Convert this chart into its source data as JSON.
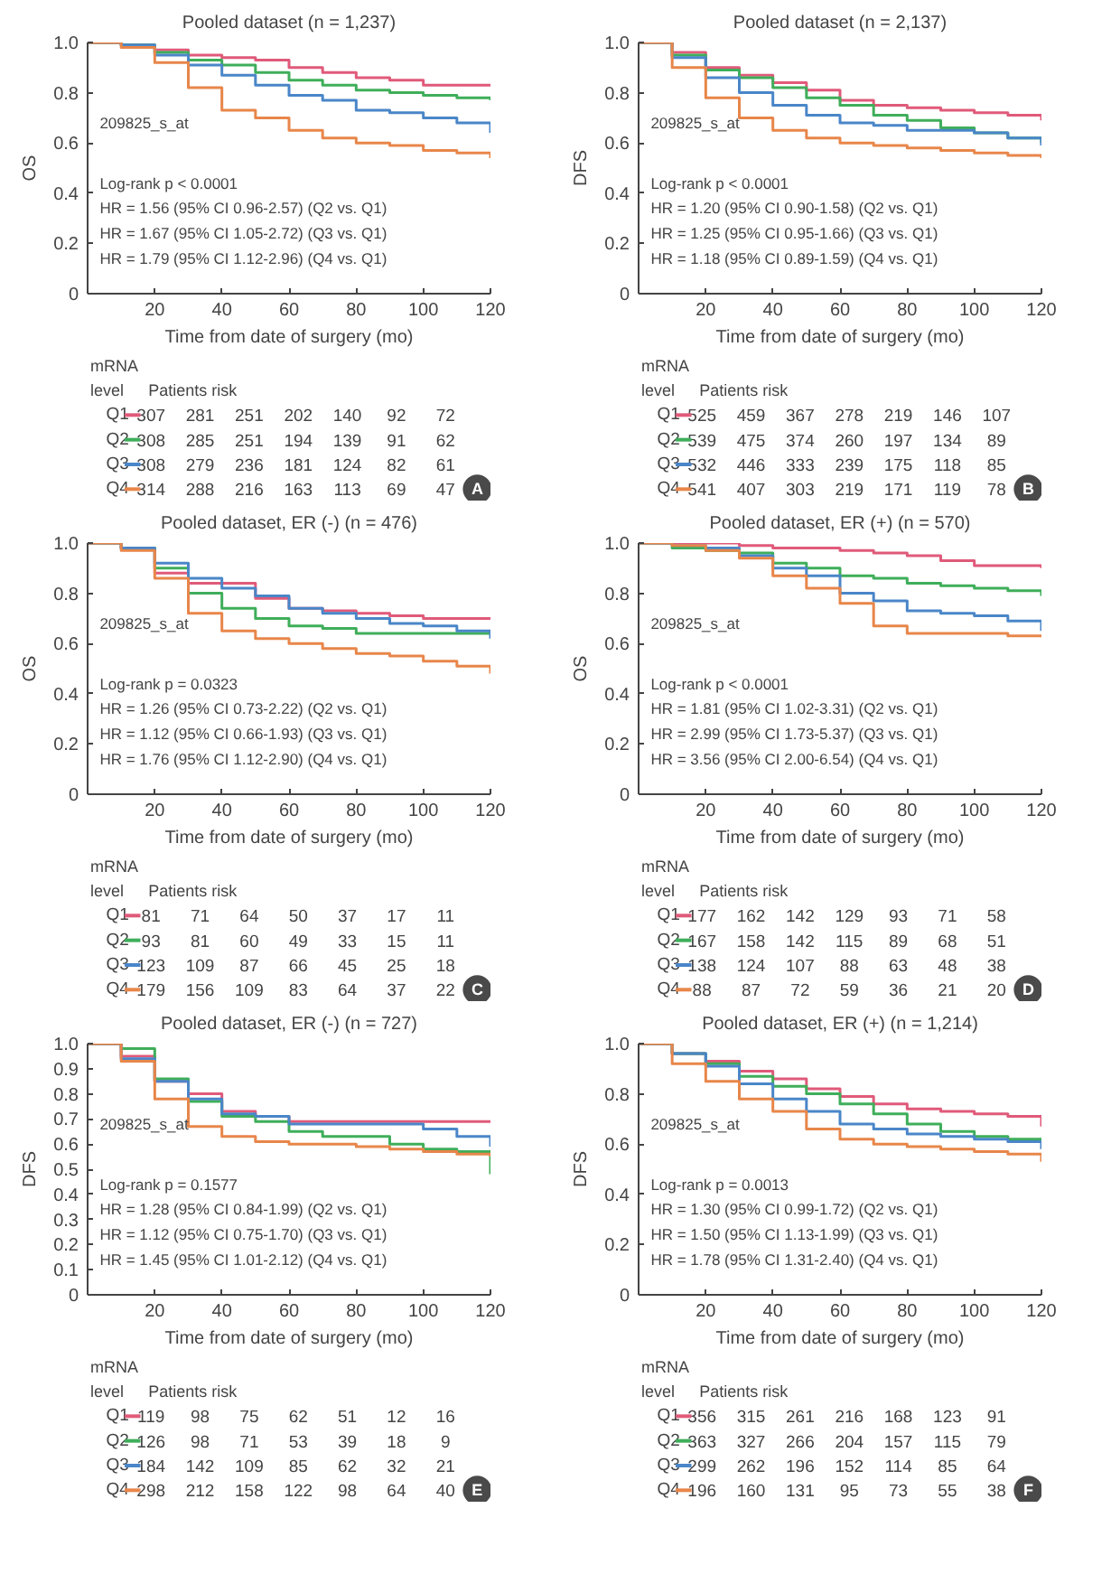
{
  "chart_data": [
    {
      "type": "step",
      "title": "Pooled dataset (n = 1,237)",
      "xlabel": "Time from date of surgery (mo)",
      "ylabel": "OS",
      "x": [
        0,
        10,
        20,
        30,
        40,
        50,
        60,
        70,
        80,
        90,
        100,
        110,
        120
      ],
      "xlim": [
        0,
        120
      ],
      "xticks": [
        20,
        40,
        60,
        80,
        100,
        120
      ],
      "ylim": [
        0,
        1
      ],
      "yticks": [
        0,
        {
          "value": 0.2,
          "label": "0.2"
        },
        {
          "value": 0.4,
          "label": "0.4"
        },
        {
          "value": 0.6,
          "label": "0.6"
        },
        {
          "value": 0.8,
          "label": "0.8"
        },
        {
          "value": 1,
          "label": "1.0"
        }
      ],
      "grid": false,
      "legend": "bottom",
      "marker": "none",
      "line_style": "solid",
      "series": [
        {
          "name": "Q1",
          "color": "#e05a7a",
          "values": [
            1,
            0.99,
            0.97,
            0.95,
            0.94,
            0.93,
            0.9,
            0.88,
            0.86,
            0.85,
            0.83,
            0.83,
            0.83
          ]
        },
        {
          "name": "Q2",
          "color": "#3fae5a",
          "values": [
            1,
            0.99,
            0.96,
            0.93,
            0.91,
            0.88,
            0.85,
            0.83,
            0.81,
            0.8,
            0.79,
            0.78,
            0.77
          ]
        },
        {
          "name": "Q3",
          "color": "#4a86c8",
          "values": [
            1,
            0.99,
            0.95,
            0.91,
            0.87,
            0.83,
            0.79,
            0.77,
            0.73,
            0.72,
            0.7,
            0.68,
            0.64
          ]
        },
        {
          "name": "Q4",
          "color": "#e8864a",
          "values": [
            1,
            0.98,
            0.92,
            0.82,
            0.73,
            0.7,
            0.65,
            0.62,
            0.6,
            0.59,
            0.57,
            0.56,
            0.54
          ]
        }
      ],
      "annotations": [
        "209825_s_at",
        "Log-rank p < 0.0001",
        "HR = 1.56 (95% CI 0.96-2.57) (Q2 vs. Q1)",
        "HR = 1.67 (95% CI 1.05-2.72) (Q3 vs. Q1)",
        "HR = 1.79 (95% CI 1.12-2.96) (Q4 vs. Q1)",
        "mRNA",
        "level",
        "Patients risk",
        "307 281 251 202 140 92 72",
        "308 285 251 194 139 91 62",
        "308 279 236 181 124 82 61",
        "314 288 216 163 113 69 47",
        "A"
      ]
    },
    {
      "type": "step",
      "title": "Pooled dataset (n = 2,137)",
      "xlabel": "Time from date of surgery (mo)",
      "ylabel": "DFS",
      "x": [
        0,
        10,
        20,
        30,
        40,
        50,
        60,
        70,
        80,
        90,
        100,
        110,
        120
      ],
      "xlim": [
        0,
        120
      ],
      "xticks": [
        20,
        40,
        60,
        80,
        100,
        120
      ],
      "ylim": [
        0,
        1
      ],
      "yticks": [
        0,
        {
          "value": 0.2,
          "label": "0.2"
        },
        {
          "value": 0.4,
          "label": "0.4"
        },
        {
          "value": 0.6,
          "label": "0.6"
        },
        {
          "value": 0.8,
          "label": "0.8"
        },
        {
          "value": 1,
          "label": "1.0"
        }
      ],
      "grid": false,
      "legend": "bottom",
      "marker": "none",
      "line_style": "solid",
      "series": [
        {
          "name": "Q1",
          "color": "#e05a7a",
          "values": [
            1,
            0.96,
            0.9,
            0.87,
            0.84,
            0.81,
            0.77,
            0.75,
            0.74,
            0.73,
            0.72,
            0.71,
            0.69
          ]
        },
        {
          "name": "Q2",
          "color": "#3fae5a",
          "values": [
            1,
            0.95,
            0.89,
            0.86,
            0.82,
            0.78,
            0.75,
            0.71,
            0.69,
            0.66,
            0.64,
            0.62,
            0.6
          ]
        },
        {
          "name": "Q3",
          "color": "#4a86c8",
          "values": [
            1,
            0.94,
            0.86,
            0.8,
            0.75,
            0.71,
            0.68,
            0.67,
            0.65,
            0.65,
            0.64,
            0.62,
            0.59
          ]
        },
        {
          "name": "Q4",
          "color": "#e8864a",
          "values": [
            1,
            0.9,
            0.78,
            0.7,
            0.65,
            0.62,
            0.6,
            0.59,
            0.58,
            0.57,
            0.56,
            0.55,
            0.54
          ]
        }
      ],
      "annotations": [
        "209825_s_at",
        "Log-rank p < 0.0001",
        "HR = 1.20 (95% CI 0.90-1.58) (Q2 vs. Q1)",
        "HR = 1.25 (95% CI 0.95-1.66) (Q3 vs. Q1)",
        "HR = 1.18 (95% CI 0.89-1.59) (Q4 vs. Q1)",
        "mRNA",
        "level",
        "Patients risk",
        "525 459 367 278 219 146 107",
        "539 475 374 260 197 134 89",
        "532 446 333 239 175 118 85",
        "541 407 303 219 171 119 78",
        "B"
      ]
    },
    {
      "type": "step",
      "title": "Pooled dataset, ER (-) (n = 476)",
      "xlabel": "Time from date of surgery (mo)",
      "ylabel": "OS",
      "x": [
        0,
        10,
        20,
        30,
        40,
        50,
        60,
        70,
        80,
        90,
        100,
        110,
        120
      ],
      "xlim": [
        0,
        120
      ],
      "xticks": [
        20,
        40,
        60,
        80,
        100,
        120
      ],
      "ylim": [
        0,
        1
      ],
      "yticks": [
        0,
        {
          "value": 0.2,
          "label": "0.2"
        },
        {
          "value": 0.4,
          "label": "0.4"
        },
        {
          "value": 0.6,
          "label": "0.6"
        },
        {
          "value": 0.8,
          "label": "0.8"
        },
        {
          "value": 1,
          "label": "1.0"
        }
      ],
      "grid": false,
      "legend": "bottom",
      "marker": "none",
      "line_style": "solid",
      "series": [
        {
          "name": "Q1",
          "color": "#e05a7a",
          "values": [
            1,
            0.98,
            0.88,
            0.84,
            0.84,
            0.78,
            0.74,
            0.73,
            0.72,
            0.71,
            0.7,
            0.7,
            0.7
          ]
        },
        {
          "name": "Q2",
          "color": "#3fae5a",
          "values": [
            1,
            0.98,
            0.9,
            0.8,
            0.74,
            0.7,
            0.67,
            0.66,
            0.64,
            0.64,
            0.64,
            0.64,
            0.64
          ]
        },
        {
          "name": "Q3",
          "color": "#4a86c8",
          "values": [
            1,
            0.98,
            0.92,
            0.86,
            0.82,
            0.79,
            0.74,
            0.72,
            0.7,
            0.68,
            0.67,
            0.65,
            0.62
          ]
        },
        {
          "name": "Q4",
          "color": "#e8864a",
          "values": [
            1,
            0.97,
            0.86,
            0.72,
            0.65,
            0.62,
            0.6,
            0.58,
            0.56,
            0.55,
            0.53,
            0.51,
            0.48
          ]
        }
      ],
      "annotations": [
        "209825_s_at",
        "Log-rank p = 0.0323",
        "HR = 1.26 (95% CI 0.73-2.22) (Q2 vs. Q1)",
        "HR = 1.12 (95% CI 0.66-1.93) (Q3 vs. Q1)",
        "HR = 1.76 (95% CI 1.12-2.90) (Q4 vs. Q1)",
        "mRNA",
        "level",
        "Patients risk",
        "81 71 64 50 37 17 11",
        "93 81 60 49 33 15 11",
        "123 109 87 66 45 25 18",
        "179 156 109 83 64 37 22",
        "C"
      ]
    },
    {
      "type": "step",
      "title": "Pooled dataset, ER (+) (n = 570)",
      "xlabel": "Time from date of surgery (mo)",
      "ylabel": "OS",
      "x": [
        0,
        10,
        20,
        30,
        40,
        50,
        60,
        70,
        80,
        90,
        100,
        110,
        120
      ],
      "xlim": [
        0,
        120
      ],
      "xticks": [
        20,
        40,
        60,
        80,
        100,
        120
      ],
      "ylim": [
        0,
        1
      ],
      "yticks": [
        0,
        {
          "value": 0.2,
          "label": "0.2"
        },
        {
          "value": 0.4,
          "label": "0.4"
        },
        {
          "value": 0.6,
          "label": "0.6"
        },
        {
          "value": 0.8,
          "label": "0.8"
        },
        {
          "value": 1,
          "label": "1.0"
        }
      ],
      "grid": false,
      "legend": "bottom",
      "marker": "none",
      "line_style": "solid",
      "series": [
        {
          "name": "Q1",
          "color": "#e05a7a",
          "values": [
            1,
            1,
            1,
            0.99,
            0.98,
            0.98,
            0.97,
            0.96,
            0.95,
            0.93,
            0.91,
            0.91,
            0.9
          ]
        },
        {
          "name": "Q2",
          "color": "#3fae5a",
          "values": [
            1,
            0.98,
            0.97,
            0.96,
            0.92,
            0.9,
            0.87,
            0.86,
            0.84,
            0.83,
            0.82,
            0.81,
            0.79
          ]
        },
        {
          "name": "Q3",
          "color": "#4a86c8",
          "values": [
            1,
            0.99,
            0.98,
            0.95,
            0.9,
            0.87,
            0.8,
            0.77,
            0.73,
            0.72,
            0.71,
            0.69,
            0.65
          ]
        },
        {
          "name": "Q4",
          "color": "#e8864a",
          "values": [
            1,
            0.99,
            0.97,
            0.94,
            0.87,
            0.82,
            0.76,
            0.67,
            0.64,
            0.64,
            0.64,
            0.63,
            0.63
          ]
        }
      ],
      "annotations": [
        "209825_s_at",
        "Log-rank p < 0.0001",
        "HR = 1.81 (95% CI 1.02-3.31) (Q2 vs. Q1)",
        "HR = 2.99 (95% CI 1.73-5.37) (Q3 vs. Q1)",
        "HR = 3.56 (95% CI 2.00-6.54) (Q4 vs. Q1)",
        "mRNA",
        "level",
        "Patients risk",
        "177 162 142 129 93 71 58",
        "167 158 142 115 89 68 51",
        "138 124 107 88 63 48 38",
        "88 87 72 59 36 21 20",
        "D"
      ]
    },
    {
      "type": "step",
      "title": "Pooled dataset, ER (-) (n = 727)",
      "xlabel": "Time from date of surgery (mo)",
      "ylabel": "DFS",
      "x": [
        0,
        10,
        20,
        30,
        40,
        50,
        60,
        70,
        80,
        90,
        100,
        110,
        120
      ],
      "xlim": [
        0,
        120
      ],
      "xticks": [
        20,
        40,
        60,
        80,
        100,
        120
      ],
      "ylim": [
        0,
        1
      ],
      "yticks": [
        0,
        {
          "value": 0.1,
          "label": "0.1"
        },
        {
          "value": 0.2,
          "label": "0.2"
        },
        {
          "value": 0.3,
          "label": "0.3"
        },
        {
          "value": 0.4,
          "label": "0.4"
        },
        {
          "value": 0.5,
          "label": "0.5"
        },
        {
          "value": 0.6,
          "label": "0.6"
        },
        {
          "value": 0.7,
          "label": "0.7"
        },
        {
          "value": 0.8,
          "label": "0.8"
        },
        {
          "value": 0.9,
          "label": "0.9"
        },
        {
          "value": 1,
          "label": "1.0"
        }
      ],
      "grid": false,
      "legend": "bottom",
      "marker": "none",
      "line_style": "solid",
      "series": [
        {
          "name": "Q1",
          "color": "#e05a7a",
          "values": [
            1,
            0.95,
            0.85,
            0.8,
            0.73,
            0.71,
            0.69,
            0.69,
            0.69,
            0.69,
            0.69,
            0.69,
            0.69
          ]
        },
        {
          "name": "Q2",
          "color": "#3fae5a",
          "values": [
            1,
            0.98,
            0.86,
            0.77,
            0.71,
            0.69,
            0.65,
            0.63,
            0.63,
            0.6,
            0.58,
            0.57,
            0.48
          ]
        },
        {
          "name": "Q3",
          "color": "#4a86c8",
          "values": [
            1,
            0.94,
            0.85,
            0.78,
            0.72,
            0.71,
            0.68,
            0.68,
            0.68,
            0.68,
            0.66,
            0.63,
            0.59
          ]
        },
        {
          "name": "Q4",
          "color": "#e8864a",
          "values": [
            1,
            0.93,
            0.78,
            0.67,
            0.63,
            0.61,
            0.6,
            0.6,
            0.59,
            0.58,
            0.57,
            0.56,
            0.55
          ]
        }
      ],
      "annotations": [
        "209825_s_at",
        "Log-rank p = 0.1577",
        "HR = 1.28 (95% CI 0.84-1.99) (Q2 vs. Q1)",
        "HR = 1.12 (95% CI 0.75-1.70) (Q3 vs. Q1)",
        "HR = 1.45 (95% CI 1.01-2.12) (Q4 vs. Q1)",
        "mRNA",
        "level",
        "Patients risk",
        "119 98 75 62 51 12 16",
        "126 98 71 53 39 18 9",
        "184 142 109 85 62 32 21",
        "298 212 158 122 98 64 40",
        "E"
      ]
    },
    {
      "type": "step",
      "title": "Pooled dataset, ER (+) (n = 1,214)",
      "xlabel": "Time from date of surgery (mo)",
      "ylabel": "DFS",
      "x": [
        0,
        10,
        20,
        30,
        40,
        50,
        60,
        70,
        80,
        90,
        100,
        110,
        120
      ],
      "xlim": [
        0,
        120
      ],
      "xticks": [
        20,
        40,
        60,
        80,
        100,
        120
      ],
      "ylim": [
        0,
        1
      ],
      "yticks": [
        0,
        {
          "value": 0.2,
          "label": "0.2"
        },
        {
          "value": 0.4,
          "label": "0.4"
        },
        {
          "value": 0.6,
          "label": "0.6"
        },
        {
          "value": 0.8,
          "label": "0.8"
        },
        {
          "value": 1,
          "label": "1.0"
        }
      ],
      "grid": false,
      "legend": "bottom",
      "marker": "none",
      "line_style": "solid",
      "series": [
        {
          "name": "Q1",
          "color": "#e05a7a",
          "values": [
            1,
            0.96,
            0.93,
            0.89,
            0.86,
            0.82,
            0.79,
            0.76,
            0.74,
            0.73,
            0.72,
            0.71,
            0.67
          ]
        },
        {
          "name": "Q2",
          "color": "#3fae5a",
          "values": [
            1,
            0.96,
            0.92,
            0.87,
            0.83,
            0.8,
            0.76,
            0.72,
            0.68,
            0.65,
            0.63,
            0.62,
            0.61
          ]
        },
        {
          "name": "Q3",
          "color": "#4a86c8",
          "values": [
            1,
            0.96,
            0.91,
            0.84,
            0.78,
            0.73,
            0.68,
            0.66,
            0.64,
            0.63,
            0.62,
            0.61,
            0.58
          ]
        },
        {
          "name": "Q4",
          "color": "#e8864a",
          "values": [
            1,
            0.92,
            0.85,
            0.78,
            0.73,
            0.66,
            0.62,
            0.6,
            0.59,
            0.58,
            0.57,
            0.56,
            0.53
          ]
        }
      ],
      "annotations": [
        "209825_s_at",
        "Log-rank p = 0.0013",
        "HR = 1.30 (95% CI 0.99-1.72) (Q2 vs. Q1)",
        "HR = 1.50 (95% CI 1.13-1.99) (Q3 vs. Q1)",
        "HR = 1.78 (95% CI 1.31-2.40) (Q4 vs. Q1)",
        "mRNA",
        "level",
        "Patients risk",
        "356 315 261 216 168 123 91",
        "363 327 266 204 157 115 79",
        "299 262 196 152 114 85 64",
        "196 160 131 95 73 55 38",
        "F"
      ]
    }
  ]
}
